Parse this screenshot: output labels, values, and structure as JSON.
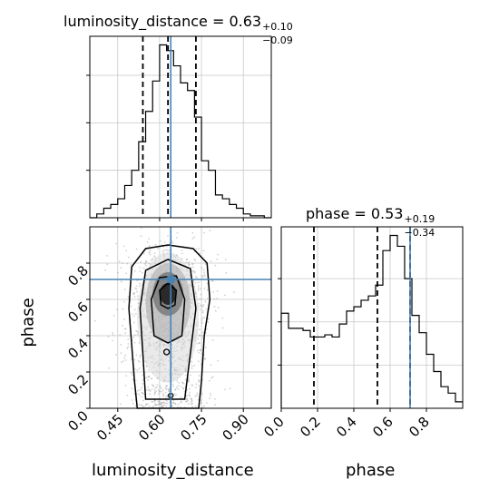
{
  "chart_data": {
    "type": "corner",
    "parameters": [
      "luminosity_distance",
      "phase"
    ],
    "titles": [
      {
        "param": "luminosity_distance",
        "text": "luminosity_distance = 0.63",
        "plus": "+0.10",
        "minus": "−0.09"
      },
      {
        "param": "phase",
        "text": "phase = 0.53",
        "plus": "+0.19",
        "minus": "−0.34"
      }
    ],
    "xlabels": [
      "luminosity_distance",
      "phase"
    ],
    "ylabel": "phase",
    "truth": {
      "luminosity_distance": 0.64,
      "phase": 0.71
    },
    "hist_luminosity_distance": {
      "xlim": [
        0.35,
        1.0
      ],
      "bin_edges": [
        0.35,
        0.375,
        0.4,
        0.425,
        0.45,
        0.475,
        0.5,
        0.525,
        0.55,
        0.575,
        0.6,
        0.625,
        0.65,
        0.675,
        0.7,
        0.725,
        0.75,
        0.775,
        0.8,
        0.825,
        0.85,
        0.875,
        0.9,
        0.925,
        0.95,
        0.975,
        1.0
      ],
      "counts": [
        0,
        2,
        5,
        7,
        10,
        17,
        25,
        40,
        56,
        72,
        91,
        88,
        80,
        71,
        67,
        53,
        30,
        25,
        12,
        10,
        7,
        5,
        2,
        1,
        1,
        0
      ],
      "quantiles": [
        0.54,
        0.63,
        0.73
      ],
      "xticks": [
        0.45,
        0.6,
        0.75,
        0.9
      ],
      "yticks": [
        25,
        50,
        75
      ]
    },
    "hist_phase": {
      "xlim": [
        0.0,
        1.0
      ],
      "bin_edges": [
        0.0,
        0.04,
        0.08,
        0.12,
        0.16,
        0.2,
        0.24,
        0.28,
        0.32,
        0.36,
        0.4,
        0.44,
        0.48,
        0.52,
        0.56,
        0.6,
        0.64,
        0.68,
        0.72,
        0.76,
        0.8,
        0.84,
        0.88,
        0.92,
        0.96,
        1.0
      ],
      "counts": [
        44,
        37,
        37,
        36,
        33,
        33,
        34,
        33,
        39,
        45,
        47,
        50,
        52,
        57,
        73,
        80,
        75,
        60,
        43,
        35,
        25,
        17,
        10,
        7,
        3
      ],
      "quantiles": [
        0.18,
        0.53,
        0.71
      ],
      "xticks": [
        "0.0",
        "0.2",
        "0.4",
        "0.6",
        "0.8"
      ],
      "yticks": [
        20,
        40,
        60
      ]
    },
    "joint": {
      "xlim": [
        0.35,
        1.0
      ],
      "ylim": [
        0.0,
        1.0
      ],
      "xticks": [
        "0.45",
        "0.60",
        "0.75",
        "0.90"
      ],
      "yticks": [
        "0.0",
        "0.2",
        "0.4",
        "0.6",
        "0.8"
      ],
      "density_center": {
        "x": 0.63,
        "y": 0.63
      }
    }
  }
}
